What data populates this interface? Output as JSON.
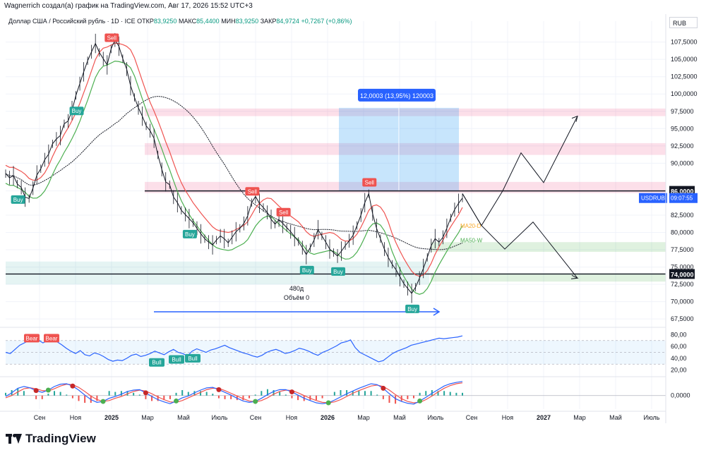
{
  "header": {
    "author_line": "Wagnerrich создал(а) график на TradingView.com, Авг 17, 2026 15:52 UTC+3",
    "instrument": "Доллар США / Российский рубль · 1D · ICE",
    "open_label": "ОТКР",
    "open_value": "83,9250",
    "high_label": "МАКС",
    "high_value": "85,4400",
    "low_label": "МИН",
    "low_value": "83,9250",
    "close_label": "ЗАКР",
    "close_value": "84,9724",
    "change": "+0,7267 (+0,86%)"
  },
  "brand": {
    "name": "TradingView"
  },
  "currency_label": "RUB",
  "chart_data": {
    "type": "line",
    "price_axis_ticks": [
      "107,5000",
      "105,0000",
      "102,5000",
      "100,0000",
      "97,5000",
      "95,0000",
      "92,5000",
      "90,0000",
      "86,0000",
      "82,5000",
      "80,0000",
      "77,5000",
      "75,0000",
      "74,0000",
      "72,5000",
      "70,0000",
      "67,5000"
    ],
    "price_axis_values": [
      107.5,
      105,
      102.5,
      100,
      97.5,
      95,
      92.5,
      90,
      86,
      82.5,
      80,
      77.5,
      75,
      74,
      72.5,
      70,
      67.5
    ],
    "ylim": [
      66.5,
      109.5
    ],
    "x_axis_labels": [
      "Сен",
      "Ноя",
      "2025",
      "Мар",
      "Май",
      "Июль",
      "Сен",
      "Ноя",
      "2026",
      "Мар",
      "Май",
      "Июль",
      "Сен",
      "Ноя",
      "2027",
      "Мар",
      "Май",
      "Июль"
    ],
    "series": [
      {
        "values": [
          88.5,
          87.9,
          88.2,
          87.0,
          86.5,
          85.1,
          84.9,
          86.4,
          88.3,
          89.2,
          90.5,
          91.3,
          92.8,
          93.5,
          94.0,
          95.7,
          96.1,
          97.6,
          99.8,
          101.5,
          103.2,
          104.8,
          106.1,
          107.3,
          106.0,
          105.1,
          104.2,
          106.5,
          107.8,
          106.9,
          105.1,
          103.6,
          101.2,
          99.5,
          98.0,
          96.8,
          95.4,
          94.7,
          93.6,
          91.2,
          89.1,
          87.3,
          86.9,
          85.1,
          84.3,
          83.2,
          82.6,
          82.0,
          81.4,
          80.6,
          79.8,
          79.1,
          78.6,
          78.2,
          78.9,
          79.5,
          79.1,
          78.5,
          79.3,
          80.1,
          80.6,
          81.3,
          82.4,
          84.3,
          85.2,
          84.2,
          83.6,
          82.9,
          81.9,
          81.2,
          81.8,
          81.3,
          80.7,
          80.1,
          79.4,
          78.7,
          77.8,
          76.8,
          77.8,
          78.9,
          80.4,
          79.5,
          78.6,
          77.6,
          77.1,
          76.6,
          77.3,
          78.1,
          78.8,
          79.6,
          81.0,
          82.5,
          84.3,
          85.6,
          82.7,
          80.6,
          79.1,
          77.6,
          76.4,
          75.4,
          74.6,
          73.6,
          72.6,
          71.9,
          71.2,
          72.1,
          73.4,
          74.8,
          76.4,
          78.1,
          79.1,
          78.6,
          79.3,
          80.6,
          82.1,
          83.3,
          84.2,
          84.97
        ],
        "color": "#131722"
      }
    ],
    "ma_series": [
      {
        "label": "MA20-D",
        "color": "#f9a825"
      },
      {
        "label": "MA50-W",
        "color": "#4caf50"
      }
    ],
    "horizontal_levels": [
      {
        "value": 86.0,
        "label": "86,0000"
      },
      {
        "value": 74.0,
        "label": "74,0000"
      }
    ],
    "zones": [
      {
        "from": 96.8,
        "to": 97.9,
        "kind": "resistance"
      },
      {
        "from": 91.2,
        "to": 92.9,
        "kind": "resistance"
      },
      {
        "from": 85.7,
        "to": 87.3,
        "kind": "resistance"
      },
      {
        "from": 77.2,
        "to": 78.6,
        "kind": "support"
      },
      {
        "from": 72.9,
        "to": 74.1,
        "kind": "support"
      }
    ],
    "projection_path": [
      85.6,
      81.0,
      86.0,
      91.5,
      87.2,
      96.8
    ],
    "projection_path_alt": [
      85.6,
      81.0,
      77.6,
      81.5,
      73.4
    ],
    "measure_tool": {
      "label": "12,0003 (13,95%) 120003",
      "from": 86.0,
      "to": 98.0
    },
    "range_annotation": {
      "bars": "480д",
      "volume": "Объём 0"
    },
    "symbol_badge": {
      "label": "USDRUB",
      "time": "09:07:55"
    },
    "signals": [
      {
        "type": "Buy",
        "index": 3
      },
      {
        "type": "Buy",
        "index": 18
      },
      {
        "type": "Sell",
        "index": 27
      },
      {
        "type": "Buy",
        "index": 47
      },
      {
        "type": "Sell",
        "index": 63
      },
      {
        "type": "Sell",
        "index": 71
      },
      {
        "type": "Buy",
        "index": 77
      },
      {
        "type": "Buy",
        "index": 85
      },
      {
        "type": "Sell",
        "index": 93
      },
      {
        "type": "Buy",
        "index": 104
      }
    ],
    "rsi": {
      "ticks": [
        "80,00",
        "60,00",
        "40,00",
        "20,00"
      ],
      "tick_values": [
        80,
        60,
        40,
        20
      ],
      "ylim": [
        10,
        90
      ],
      "values": [
        50,
        48,
        55,
        62,
        66,
        70,
        74,
        71,
        66,
        70,
        73,
        68,
        63,
        57,
        52,
        48,
        53,
        46,
        44,
        49,
        47,
        43,
        38,
        35,
        37,
        36,
        40,
        45,
        47,
        43,
        45,
        48,
        52,
        49,
        46,
        51,
        55,
        50,
        48,
        44,
        52,
        56,
        53,
        50,
        54,
        56,
        59,
        62,
        58,
        55,
        52,
        49,
        47,
        44,
        42,
        45,
        50,
        53,
        55,
        52,
        48,
        50,
        53,
        57,
        55,
        52,
        48,
        45,
        50,
        53,
        57,
        61,
        66,
        68,
        71,
        58,
        50,
        46,
        42,
        38,
        34,
        36,
        42,
        48,
        52,
        55,
        58,
        62,
        64,
        66,
        68,
        70,
        72,
        74,
        73,
        74,
        75,
        76,
        78
      ],
      "divergences": [
        {
          "type": "Bear"
        },
        {
          "type": "Bear"
        },
        {
          "type": "Bull"
        },
        {
          "type": "Bull"
        },
        {
          "type": "Bull"
        }
      ]
    },
    "oscillator": {
      "ticks": [
        "0,0000"
      ],
      "fast": [
        -0.2,
        0.6,
        1.6,
        2.0,
        1.7,
        1.1,
        0.7,
        1.2,
        2.0,
        2.5,
        2.6,
        2.1,
        1.2,
        0.1,
        -0.9,
        -1.5,
        -1.3,
        -0.6,
        -0.2,
        0.3,
        0.9,
        1.2,
        1.3,
        0.6,
        -0.2,
        -0.9,
        -1.4,
        -1.8,
        -1.2,
        -0.5,
        -0.1,
        0.6,
        1.2,
        1.7,
        1.8,
        1.3,
        0.7,
        0.1,
        -0.6,
        -1.2,
        -1.5,
        -1.3,
        -0.6,
        0.2,
        0.9,
        1.3,
        1.3,
        0.8,
        0.1,
        -0.6,
        -1.1,
        -1.6,
        -1.8,
        -1.6,
        -1.0,
        -0.3,
        0.4,
        1.0,
        1.6,
        2.1,
        2.6,
        2.4,
        1.6,
        0.4,
        -0.7,
        -1.3,
        -1.7,
        -1.9,
        -1.2,
        -0.4,
        0.5,
        1.3,
        2.1,
        2.6,
        2.9,
        3.1
      ],
      "slow": [
        -0.5,
        0.0,
        0.8,
        1.5,
        1.7,
        1.5,
        1.1,
        1.0,
        1.5,
        2.1,
        2.5,
        2.4,
        1.8,
        0.9,
        -0.1,
        -0.9,
        -1.3,
        -1.1,
        -0.6,
        -0.2,
        0.4,
        0.9,
        1.2,
        1.0,
        0.4,
        -0.3,
        -0.9,
        -1.4,
        -1.5,
        -1.1,
        -0.5,
        0.1,
        0.7,
        1.3,
        1.6,
        1.6,
        1.1,
        0.5,
        -0.1,
        -0.7,
        -1.2,
        -1.4,
        -1.1,
        -0.5,
        0.3,
        0.9,
        1.2,
        1.1,
        0.6,
        0.0,
        -0.6,
        -1.1,
        -1.5,
        -1.6,
        -1.4,
        -0.9,
        -0.2,
        0.5,
        1.1,
        1.6,
        2.1,
        2.3,
        2.0,
        1.2,
        0.2,
        -0.7,
        -1.3,
        -1.6,
        -1.5,
        -0.9,
        -0.1,
        0.8,
        1.6,
        2.2,
        2.6,
        2.8
      ],
      "ylim": [
        -3,
        4
      ]
    }
  }
}
